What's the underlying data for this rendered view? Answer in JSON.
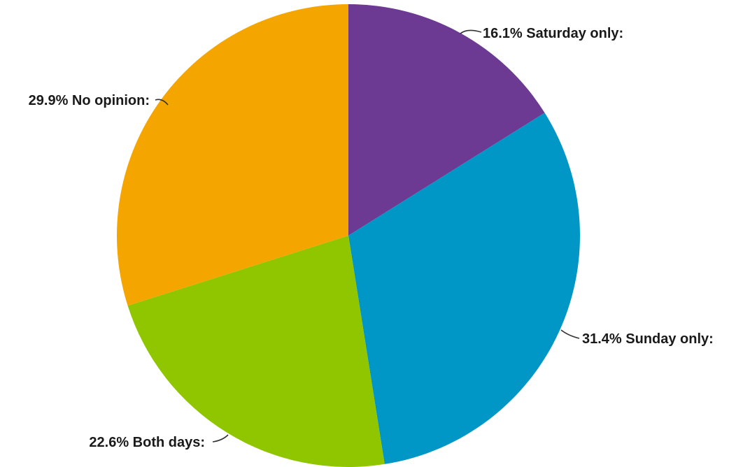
{
  "chart_data": {
    "type": "pie",
    "title": "",
    "start_angle_deg": 0,
    "direction": "clockwise",
    "slices": [
      {
        "label": "16.1% Saturday only:",
        "name": "Saturday only",
        "value": 16.1,
        "color": "#6c3a92"
      },
      {
        "label": "31.4% Sunday only:",
        "name": "Sunday only",
        "value": 31.4,
        "color": "#0096c6"
      },
      {
        "label": "22.6% Both days:",
        "name": "Both days",
        "value": 22.6,
        "color": "#8fc600"
      },
      {
        "label": "29.9% No opinion:",
        "name": "No opinion",
        "value": 29.9,
        "color": "#f5a500"
      }
    ]
  }
}
